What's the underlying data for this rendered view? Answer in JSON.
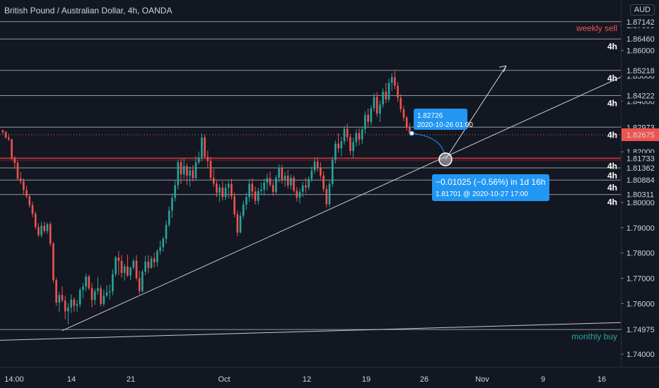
{
  "header": {
    "title": "British Pound / Australian Dollar, 4h, OANDA",
    "currency_button": "AUD"
  },
  "colors": {
    "background": "#131722",
    "up": "#26a69a",
    "down": "#ef5350",
    "level_line": "#9598a1",
    "key_level": "#b22833",
    "annotation_blue": "#2196f3",
    "sell_text": "#ef5350",
    "buy_text": "#26a69a"
  },
  "chart_data": {
    "type": "candlestick",
    "symbol": "GBPAUD",
    "interval": "4h",
    "ylim": [
      1.735,
      1.88
    ],
    "price_axis_ticks": [
      "1.74000",
      "1.75000",
      "1.76000",
      "1.77000",
      "1.78000",
      "1.79000",
      "1.80000",
      "1.81000",
      "1.82000",
      "1.83000",
      "1.84000",
      "1.85000",
      "1.86000",
      "1.87000"
    ],
    "x_ticks": [
      "14:00",
      "14",
      "21",
      "Oct",
      "12",
      "19",
      "26",
      "Nov",
      "9",
      "16"
    ],
    "last_price": "1.82675",
    "candles": [
      [
        1.8285,
        1.8288,
        1.8268,
        1.8278
      ],
      [
        1.8278,
        1.8282,
        1.8252,
        1.8256
      ],
      [
        1.8256,
        1.8271,
        1.8243,
        1.8249
      ],
      [
        1.8249,
        1.8252,
        1.8166,
        1.8176
      ],
      [
        1.8176,
        1.8183,
        1.8133,
        1.8156
      ],
      [
        1.8156,
        1.8167,
        1.8089,
        1.8094
      ],
      [
        1.8094,
        1.8121,
        1.8072,
        1.8084
      ],
      [
        1.8084,
        1.8095,
        1.8032,
        1.8049
      ],
      [
        1.8049,
        1.8066,
        1.8016,
        1.8024
      ],
      [
        1.8024,
        1.8031,
        1.7979,
        1.7989
      ],
      [
        1.7989,
        1.8002,
        1.7941,
        1.7955
      ],
      [
        1.7955,
        1.7965,
        1.7893,
        1.7903
      ],
      [
        1.7903,
        1.7918,
        1.7863,
        1.7871
      ],
      [
        1.7871,
        1.7923,
        1.7861,
        1.7908
      ],
      [
        1.7908,
        1.7923,
        1.7879,
        1.7887
      ],
      [
        1.7887,
        1.7921,
        1.7875,
        1.7914
      ],
      [
        1.7914,
        1.7923,
        1.7826,
        1.7837
      ],
      [
        1.7837,
        1.7843,
        1.7682,
        1.7693
      ],
      [
        1.7693,
        1.7702,
        1.7591,
        1.7604
      ],
      [
        1.7604,
        1.7646,
        1.7566,
        1.7634
      ],
      [
        1.7634,
        1.7668,
        1.7605,
        1.7612
      ],
      [
        1.7612,
        1.7631,
        1.7538,
        1.7569
      ],
      [
        1.7569,
        1.7603,
        1.7519,
        1.7585
      ],
      [
        1.7585,
        1.7637,
        1.7563,
        1.7616
      ],
      [
        1.7616,
        1.7625,
        1.7568,
        1.7591
      ],
      [
        1.7591,
        1.7615,
        1.7567,
        1.7597
      ],
      [
        1.7597,
        1.7663,
        1.7585,
        1.7654
      ],
      [
        1.7654,
        1.7681,
        1.7621,
        1.7667
      ],
      [
        1.7667,
        1.7719,
        1.7648,
        1.7707
      ],
      [
        1.7707,
        1.7714,
        1.7653,
        1.7661
      ],
      [
        1.7661,
        1.7681,
        1.7586,
        1.7614
      ],
      [
        1.7614,
        1.7659,
        1.7595,
        1.7649
      ],
      [
        1.7649,
        1.7705,
        1.7635,
        1.7661
      ],
      [
        1.7661,
        1.7673,
        1.7589,
        1.7599
      ],
      [
        1.7599,
        1.7655,
        1.7589,
        1.7632
      ],
      [
        1.7632,
        1.7672,
        1.7625,
        1.7644
      ],
      [
        1.7644,
        1.7676,
        1.7616,
        1.7648
      ],
      [
        1.7648,
        1.7736,
        1.7633,
        1.7717
      ],
      [
        1.7717,
        1.7788,
        1.7707,
        1.7782
      ],
      [
        1.7782,
        1.7808,
        1.7712,
        1.7769
      ],
      [
        1.7769,
        1.7791,
        1.7702,
        1.7721
      ],
      [
        1.7721,
        1.7758,
        1.7691,
        1.7747
      ],
      [
        1.7747,
        1.7794,
        1.7705,
        1.7711
      ],
      [
        1.7711,
        1.7746,
        1.7693,
        1.7742
      ],
      [
        1.7742,
        1.7778,
        1.7734,
        1.7769
      ],
      [
        1.7769,
        1.7792,
        1.7691,
        1.7701
      ],
      [
        1.7701,
        1.7729,
        1.7637,
        1.7649
      ],
      [
        1.7649,
        1.7735,
        1.7643,
        1.7726
      ],
      [
        1.7726,
        1.7788,
        1.7712,
        1.7766
      ],
      [
        1.7766,
        1.7791,
        1.7721,
        1.7741
      ],
      [
        1.7741,
        1.7789,
        1.7738,
        1.7778
      ],
      [
        1.7778,
        1.7801,
        1.7743,
        1.7764
      ],
      [
        1.7764,
        1.7815,
        1.7747,
        1.7808
      ],
      [
        1.7808,
        1.7849,
        1.7793,
        1.7823
      ],
      [
        1.7823,
        1.7864,
        1.7805,
        1.7856
      ],
      [
        1.7856,
        1.7928,
        1.7837,
        1.7911
      ],
      [
        1.7911,
        1.7984,
        1.7902,
        1.7968
      ],
      [
        1.7968,
        1.8035,
        1.7938,
        1.8018
      ],
      [
        1.8018,
        1.8086,
        1.8003,
        1.8068
      ],
      [
        1.8068,
        1.8167,
        1.8051,
        1.8159
      ],
      [
        1.8159,
        1.8173,
        1.8073,
        1.8111
      ],
      [
        1.8111,
        1.8173,
        1.8093,
        1.8144
      ],
      [
        1.8144,
        1.8155,
        1.8068,
        1.8106
      ],
      [
        1.8106,
        1.8142,
        1.8062,
        1.8127
      ],
      [
        1.8127,
        1.8148,
        1.8083,
        1.8096
      ],
      [
        1.8096,
        1.8183,
        1.8086,
        1.8158
      ],
      [
        1.8158,
        1.8201,
        1.8151,
        1.8178
      ],
      [
        1.8178,
        1.8272,
        1.8162,
        1.8257
      ],
      [
        1.8257,
        1.8268,
        1.8173,
        1.8181
      ],
      [
        1.8181,
        1.8205,
        1.8137,
        1.8163
      ],
      [
        1.8163,
        1.8179,
        1.8089,
        1.8097
      ],
      [
        1.8097,
        1.8132,
        1.8061,
        1.8074
      ],
      [
        1.8074,
        1.8086,
        1.8021,
        1.8038
      ],
      [
        1.8038,
        1.8071,
        1.8001,
        1.8059
      ],
      [
        1.8059,
        1.8083,
        1.8007,
        1.8021
      ],
      [
        1.8021,
        1.8073,
        1.8008,
        1.8058
      ],
      [
        1.8058,
        1.8085,
        1.8016,
        1.8073
      ],
      [
        1.8073,
        1.8094,
        1.8012,
        1.8024
      ],
      [
        1.8024,
        1.8039,
        1.7941,
        1.7953
      ],
      [
        1.7953,
        1.7968,
        1.7865,
        1.7881
      ],
      [
        1.7881,
        1.7962,
        1.7876,
        1.7947
      ],
      [
        1.7947,
        1.8007,
        1.7936,
        1.7992
      ],
      [
        1.7992,
        1.8038,
        1.7971,
        1.8021
      ],
      [
        1.8021,
        1.8093,
        1.8003,
        1.8074
      ],
      [
        1.8074,
        1.8095,
        1.8014,
        1.8043
      ],
      [
        1.8043,
        1.8063,
        1.7992,
        1.8006
      ],
      [
        1.8006,
        1.8058,
        1.7991,
        1.8045
      ],
      [
        1.8045,
        1.8078,
        1.8031,
        1.8051
      ],
      [
        1.8051,
        1.8093,
        1.8027,
        1.8078
      ],
      [
        1.8078,
        1.8114,
        1.8046,
        1.8096
      ],
      [
        1.8096,
        1.8122,
        1.8061,
        1.8069
      ],
      [
        1.8069,
        1.8083,
        1.8026,
        1.8041
      ],
      [
        1.8041,
        1.8108,
        1.8033,
        1.8098
      ],
      [
        1.8098,
        1.8151,
        1.8079,
        1.8137
      ],
      [
        1.8137,
        1.8149,
        1.8074,
        1.8089
      ],
      [
        1.8089,
        1.8121,
        1.8062,
        1.8105
      ],
      [
        1.8105,
        1.8129,
        1.8054,
        1.8067
      ],
      [
        1.8067,
        1.8111,
        1.8051,
        1.8097
      ],
      [
        1.8097,
        1.8106,
        1.8038,
        1.8046
      ],
      [
        1.8046,
        1.8061,
        1.8004,
        1.8018
      ],
      [
        1.8018,
        1.8056,
        1.7996,
        1.8042
      ],
      [
        1.8042,
        1.8081,
        1.8021,
        1.8067
      ],
      [
        1.8067,
        1.8098,
        1.8037,
        1.8059
      ],
      [
        1.8059,
        1.8103,
        1.8048,
        1.8093
      ],
      [
        1.8093,
        1.8141,
        1.8081,
        1.8126
      ],
      [
        1.8126,
        1.8177,
        1.8113,
        1.8161
      ],
      [
        1.8161,
        1.8179,
        1.8121,
        1.8135
      ],
      [
        1.8135,
        1.8158,
        1.8093,
        1.8106
      ],
      [
        1.8106,
        1.8123,
        1.8041,
        1.8053
      ],
      [
        1.8053,
        1.8068,
        1.7981,
        1.7993
      ],
      [
        1.7993,
        1.8085,
        1.7981,
        1.8073
      ],
      [
        1.8073,
        1.8181,
        1.8061,
        1.8168
      ],
      [
        1.8168,
        1.8245,
        1.8153,
        1.8232
      ],
      [
        1.8232,
        1.8273,
        1.8196,
        1.8214
      ],
      [
        1.8214,
        1.8259,
        1.8183,
        1.8241
      ],
      [
        1.8241,
        1.8303,
        1.8228,
        1.8291
      ],
      [
        1.8291,
        1.8312,
        1.8241,
        1.8258
      ],
      [
        1.8258,
        1.8271,
        1.8188,
        1.8203
      ],
      [
        1.8203,
        1.8256,
        1.8176,
        1.8238
      ],
      [
        1.8238,
        1.8289,
        1.8221,
        1.8274
      ],
      [
        1.8274,
        1.8293,
        1.8226,
        1.8248
      ],
      [
        1.8248,
        1.8302,
        1.8231,
        1.8289
      ],
      [
        1.8289,
        1.8361,
        1.8273,
        1.8346
      ],
      [
        1.8346,
        1.8371,
        1.8301,
        1.8318
      ],
      [
        1.8318,
        1.8385,
        1.8305,
        1.8372
      ],
      [
        1.8372,
        1.8432,
        1.8359,
        1.8417
      ],
      [
        1.8417,
        1.8436,
        1.8338,
        1.8351
      ],
      [
        1.8351,
        1.8403,
        1.8318,
        1.8387
      ],
      [
        1.8387,
        1.8451,
        1.8374,
        1.8438
      ],
      [
        1.8438,
        1.8472,
        1.8392,
        1.8407
      ],
      [
        1.8407,
        1.8489,
        1.8396,
        1.8472
      ],
      [
        1.8472,
        1.8511,
        1.8441,
        1.8495
      ],
      [
        1.8495,
        1.8518,
        1.8448,
        1.8461
      ],
      [
        1.8461,
        1.8476,
        1.8398,
        1.8413
      ],
      [
        1.8413,
        1.8428,
        1.8356,
        1.8368
      ],
      [
        1.8368,
        1.8381,
        1.8321,
        1.8335
      ],
      [
        1.8335,
        1.8342,
        1.8283,
        1.8296
      ],
      [
        1.8296,
        1.8313,
        1.8264,
        1.8273
      ]
    ]
  },
  "levels": [
    {
      "price": "1.87142",
      "note": "weekly sell"
    },
    {
      "price": "1.86460",
      "note": "4h"
    },
    {
      "price": "1.85218",
      "note": "4h"
    },
    {
      "price": "1.84222",
      "note": "4h"
    },
    {
      "price": "1.82973",
      "note": "4h"
    },
    {
      "price": "1.81733",
      "note": "4h"
    },
    {
      "price": "1.81362",
      "note": "4h"
    },
    {
      "price": "1.80884",
      "note": "4h"
    },
    {
      "price": "1.80311",
      "note": "4h"
    },
    {
      "price": "1.74975",
      "note": "monthly buy"
    }
  ],
  "annotations": {
    "point_tip": {
      "line1": "1.82726",
      "line2": "2020-10-26 01:00"
    },
    "measure_tip": {
      "line1": "−0.01025 (−0.56%) in 1d 16h",
      "line2": "1.81701 @ 2020-10-27  17:00"
    }
  }
}
